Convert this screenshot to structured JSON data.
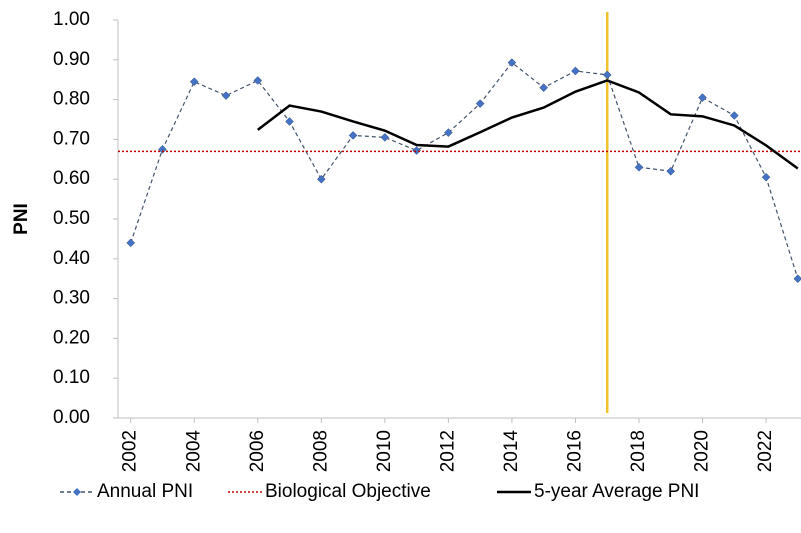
{
  "chart_data": {
    "type": "line",
    "y_label": "PNI",
    "x": [
      2002,
      2003,
      2004,
      2005,
      2006,
      2007,
      2008,
      2009,
      2010,
      2011,
      2012,
      2013,
      2014,
      2015,
      2016,
      2017,
      2018,
      2019,
      2020,
      2021,
      2022,
      2023
    ],
    "xlim": [
      2001.6,
      2023.1
    ],
    "xticks": [
      2002,
      2004,
      2006,
      2008,
      2010,
      2012,
      2014,
      2016,
      2018,
      2020,
      2022
    ],
    "ylim": [
      0,
      1
    ],
    "yticks": [
      {
        "value": 0,
        "label": "0.00"
      },
      {
        "value": 0.1,
        "label": "0.10"
      },
      {
        "value": 0.2,
        "label": "0.20"
      },
      {
        "value": 0.3,
        "label": "0.30"
      },
      {
        "value": 0.4,
        "label": "0.40"
      },
      {
        "value": 0.5,
        "label": "0.50"
      },
      {
        "value": 0.6,
        "label": "0.60"
      },
      {
        "value": 0.7,
        "label": "0.70"
      },
      {
        "value": 0.8,
        "label": "0.80"
      },
      {
        "value": 0.9,
        "label": "0.90"
      },
      {
        "value": 1,
        "label": "1.00"
      }
    ],
    "series": [
      {
        "name": "Annual PNI",
        "color": "#44546a",
        "marker_color": "#4472c4",
        "dash": "dashed",
        "marker": "diamond",
        "values": [
          0.44,
          0.675,
          0.845,
          0.81,
          0.848,
          0.745,
          0.6,
          0.71,
          0.705,
          0.672,
          0.717,
          0.79,
          0.893,
          0.83,
          0.872,
          0.862,
          0.63,
          0.62,
          0.805,
          0.76,
          0.605,
          0.35
        ]
      },
      {
        "name": "Biological Objective",
        "color": "#c00000",
        "dash": "dotted",
        "value": 0.67
      },
      {
        "name": "5-year Average PNI",
        "color": "#000000",
        "dash": "solid",
        "values": [
          null,
          null,
          null,
          null,
          0.724,
          0.785,
          0.77,
          0.745,
          0.722,
          0.686,
          0.682,
          0.718,
          0.755,
          0.78,
          0.82,
          0.848,
          0.818,
          0.763,
          0.758,
          0.735,
          0.685,
          0.627
        ]
      }
    ],
    "vertical_line": {
      "x": 2017,
      "color": "#f2c12e"
    }
  }
}
